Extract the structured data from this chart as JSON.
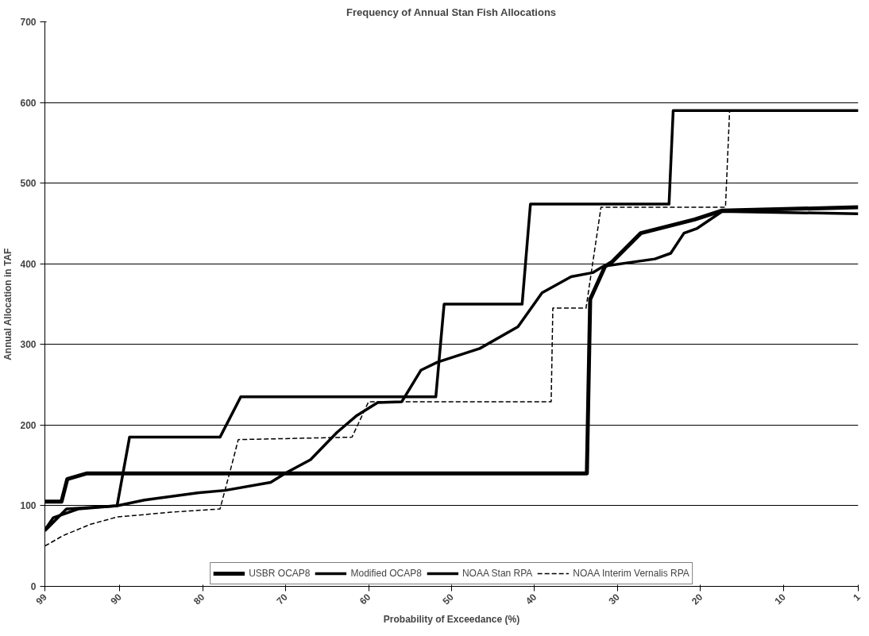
{
  "chart_data": {
    "type": "line",
    "title": "Frequency of Annual Stan Fish Allocations",
    "xlabel": "Probability of Exceedance (%)",
    "ylabel": "Annual Allocation in TAF",
    "xlim": [
      99,
      1
    ],
    "xticks": [
      99,
      90,
      80,
      70,
      60,
      50,
      40,
      30,
      20,
      10,
      1
    ],
    "ylim": [
      0,
      700
    ],
    "yticks": [
      0,
      100,
      200,
      300,
      400,
      500,
      600,
      700
    ],
    "grid": "y",
    "legend": "bottom",
    "line_style": "solid",
    "series": [
      {
        "name": "USBR OCAP8",
        "color": "#000000",
        "x": [
          99,
          97,
          96.3,
          94,
          33.7,
          33.3,
          31.5,
          30.7,
          27.2,
          20.7,
          17.4,
          1
        ],
        "values": [
          105,
          105,
          133,
          140,
          140,
          356,
          397,
          402,
          438,
          455,
          466,
          470
        ]
      },
      {
        "name": "Modified OCAP8",
        "color": "#000000",
        "x": [
          99,
          98,
          95,
          90.3,
          88.8,
          77.9,
          75.4,
          51.9,
          50.9,
          41.5,
          40.5,
          23.8,
          23.3,
          1
        ],
        "values": [
          70,
          85,
          96,
          100,
          185,
          185,
          235,
          235,
          350,
          350,
          474,
          474,
          590,
          590
        ]
      },
      {
        "name": "NOAA Stan RPA",
        "color": "#000000",
        "x": [
          99,
          96.4,
          90.3,
          87,
          80.6,
          77.3,
          71.8,
          69.9,
          67,
          63.8,
          61.4,
          58.9,
          56,
          53.7,
          51.7,
          46.6,
          42,
          39.1,
          35.6,
          33,
          31.7,
          25.5,
          23.6,
          22,
          20.4,
          17.4,
          1
        ],
        "values": [
          69,
          96,
          100,
          107,
          116,
          119,
          129,
          141,
          157,
          191,
          212,
          228,
          229,
          268,
          278,
          295,
          322,
          364,
          384,
          389,
          397,
          406,
          413,
          438,
          444,
          465,
          462
        ]
      },
      {
        "name": "NOAA Interim Vernalis RPA",
        "color": "#000000",
        "line_style": "dashed",
        "x": [
          99,
          96.8,
          93.5,
          90.3,
          83.8,
          77.9,
          76.5,
          75.7,
          62,
          60,
          38,
          37.8,
          33.8,
          32,
          17,
          16.5,
          1
        ],
        "values": [
          50,
          63,
          77,
          86,
          92,
          96,
          150,
          182,
          185,
          229,
          229,
          345,
          345,
          470,
          470,
          590,
          590
        ]
      }
    ]
  }
}
